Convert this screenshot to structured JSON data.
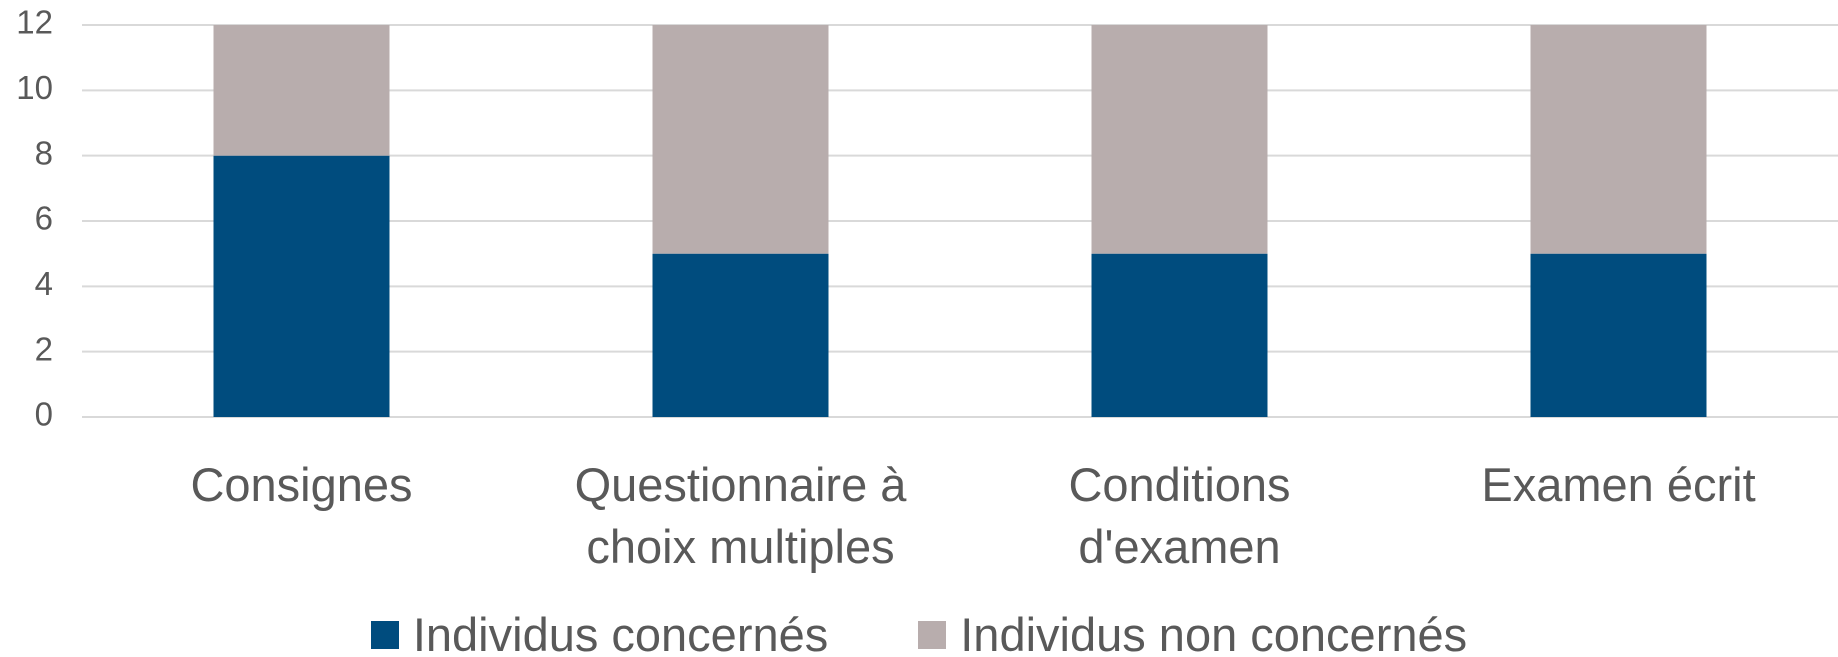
{
  "chart_data": {
    "type": "stacked_bar",
    "categories": [
      "Consignes",
      "Questionnaire à choix multiples",
      "Conditions d'examen",
      "Examen écrit"
    ],
    "series": [
      {
        "name": "Individus concernés",
        "color": "#004c7e",
        "values": [
          8,
          5,
          5,
          5
        ]
      },
      {
        "name": "Individus non concernés",
        "color": "#b8adad",
        "values": [
          4,
          7,
          7,
          7
        ]
      }
    ],
    "ylim": [
      0,
      12
    ],
    "yticks": [
      0,
      2,
      4,
      6,
      8,
      10,
      12
    ],
    "grid": true,
    "legend": "bottom"
  }
}
